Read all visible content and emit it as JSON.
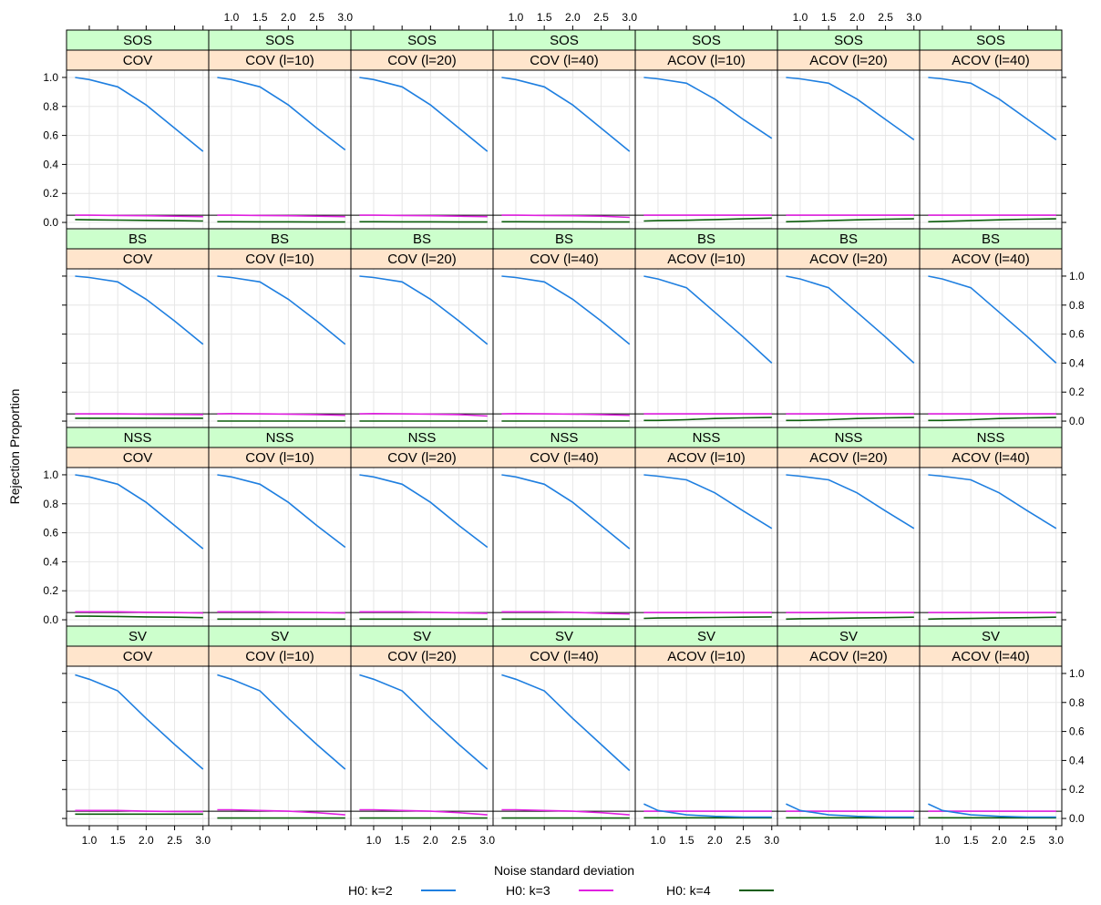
{
  "chart_data": {
    "type": "line",
    "xlabel": "Noise standard deviation",
    "ylabel": "Rejection Proportion",
    "xlim": [
      0.6,
      3.1
    ],
    "ylim": [
      -0.05,
      1.05
    ],
    "x": [
      0.75,
      1.0,
      1.5,
      2.0,
      2.5,
      3.0
    ],
    "x_ticks": [
      "1.0",
      "1.5",
      "2.0",
      "2.5",
      "3.0"
    ],
    "x_tick_values": [
      1.0,
      1.5,
      2.0,
      2.5,
      3.0
    ],
    "y_ticks": [
      "0.0",
      "0.2",
      "0.4",
      "0.6",
      "0.8",
      "1.0"
    ],
    "y_tick_values": [
      0.0,
      0.2,
      0.4,
      0.6,
      0.8,
      1.0
    ],
    "reference_line": 0.05,
    "grid": true,
    "legend": {
      "placement": "bottom",
      "entries": [
        {
          "label": "H0: k=2",
          "color": "#1f7fe0"
        },
        {
          "label": "H0: k=3",
          "color": "#e020e0"
        },
        {
          "label": "H0: k=4",
          "color": "#0b5d0b"
        }
      ]
    },
    "strip_colors": {
      "top": "#ccffcc",
      "bottom": "#ffe5cc"
    },
    "columns": [
      "COV",
      "COV (l=10)",
      "COV (l=20)",
      "COV (l=40)",
      "ACOV (l=10)",
      "ACOV (l=20)",
      "ACOV (l=40)"
    ],
    "rows": [
      {
        "name": "SOS",
        "series": [
          {
            "k2": [
              1.0,
              0.985,
              0.935,
              0.81,
              0.65,
              0.49
            ],
            "k3": [
              0.05,
              0.05,
              0.048,
              0.046,
              0.043,
              0.04
            ],
            "k4": [
              0.02,
              0.018,
              0.016,
              0.014,
              0.012,
              0.01
            ]
          },
          {
            "k2": [
              1.0,
              0.985,
              0.935,
              0.81,
              0.65,
              0.5
            ],
            "k3": [
              0.05,
              0.05,
              0.048,
              0.046,
              0.043,
              0.04
            ],
            "k4": [
              0.005,
              0.005,
              0.004,
              0.004,
              0.003,
              0.003
            ]
          },
          {
            "k2": [
              1.0,
              0.985,
              0.935,
              0.81,
              0.65,
              0.49
            ],
            "k3": [
              0.05,
              0.05,
              0.048,
              0.046,
              0.043,
              0.04
            ],
            "k4": [
              0.005,
              0.005,
              0.004,
              0.004,
              0.003,
              0.003
            ]
          },
          {
            "k2": [
              1.0,
              0.985,
              0.935,
              0.81,
              0.65,
              0.49
            ],
            "k3": [
              0.05,
              0.05,
              0.048,
              0.046,
              0.043,
              0.035
            ],
            "k4": [
              0.005,
              0.005,
              0.004,
              0.004,
              0.003,
              0.003
            ]
          },
          {
            "k2": [
              1.0,
              0.99,
              0.96,
              0.85,
              0.71,
              0.58
            ],
            "k3": [
              0.05,
              0.05,
              0.05,
              0.05,
              0.05,
              0.05
            ],
            "k4": [
              0.01,
              0.012,
              0.015,
              0.02,
              0.025,
              0.03
            ]
          },
          {
            "k2": [
              1.0,
              0.99,
              0.96,
              0.85,
              0.71,
              0.57
            ],
            "k3": [
              0.05,
              0.05,
              0.05,
              0.05,
              0.05,
              0.05
            ],
            "k4": [
              0.005,
              0.007,
              0.012,
              0.018,
              0.022,
              0.025
            ]
          },
          {
            "k2": [
              1.0,
              0.99,
              0.96,
              0.85,
              0.71,
              0.57
            ],
            "k3": [
              0.05,
              0.05,
              0.05,
              0.05,
              0.05,
              0.05
            ],
            "k4": [
              0.005,
              0.007,
              0.012,
              0.018,
              0.022,
              0.025
            ]
          }
        ]
      },
      {
        "name": "BS",
        "series": [
          {
            "k2": [
              1.0,
              0.99,
              0.96,
              0.84,
              0.69,
              0.53
            ],
            "k3": [
              0.05,
              0.05,
              0.05,
              0.048,
              0.046,
              0.045
            ],
            "k4": [
              0.02,
              0.02,
              0.02,
              0.02,
              0.02,
              0.02
            ]
          },
          {
            "k2": [
              1.0,
              0.99,
              0.96,
              0.84,
              0.69,
              0.53
            ],
            "k3": [
              0.05,
              0.052,
              0.05,
              0.048,
              0.045,
              0.04
            ],
            "k4": [
              0.0,
              0.0,
              0.0,
              0.0,
              0.0,
              0.0
            ]
          },
          {
            "k2": [
              1.0,
              0.99,
              0.96,
              0.84,
              0.69,
              0.53
            ],
            "k3": [
              0.05,
              0.052,
              0.05,
              0.048,
              0.045,
              0.035
            ],
            "k4": [
              0.0,
              0.0,
              0.0,
              0.0,
              0.0,
              0.0
            ]
          },
          {
            "k2": [
              1.0,
              0.99,
              0.96,
              0.84,
              0.69,
              0.53
            ],
            "k3": [
              0.05,
              0.052,
              0.05,
              0.048,
              0.045,
              0.04
            ],
            "k4": [
              0.0,
              0.0,
              0.0,
              0.0,
              0.0,
              0.0
            ]
          },
          {
            "k2": [
              1.0,
              0.98,
              0.92,
              0.75,
              0.58,
              0.4
            ],
            "k3": [
              0.05,
              0.05,
              0.05,
              0.05,
              0.05,
              0.05
            ],
            "k4": [
              0.005,
              0.005,
              0.01,
              0.018,
              0.022,
              0.025
            ]
          },
          {
            "k2": [
              1.0,
              0.98,
              0.92,
              0.75,
              0.58,
              0.4
            ],
            "k3": [
              0.05,
              0.05,
              0.05,
              0.05,
              0.05,
              0.05
            ],
            "k4": [
              0.005,
              0.005,
              0.01,
              0.018,
              0.022,
              0.025
            ]
          },
          {
            "k2": [
              1.0,
              0.98,
              0.92,
              0.75,
              0.58,
              0.4
            ],
            "k3": [
              0.05,
              0.05,
              0.05,
              0.05,
              0.05,
              0.05
            ],
            "k4": [
              0.005,
              0.005,
              0.01,
              0.018,
              0.022,
              0.025
            ]
          }
        ]
      },
      {
        "name": "NSS",
        "series": [
          {
            "k2": [
              1.0,
              0.985,
              0.935,
              0.81,
              0.65,
              0.49
            ],
            "k3": [
              0.055,
              0.055,
              0.055,
              0.052,
              0.05,
              0.047
            ],
            "k4": [
              0.025,
              0.025,
              0.023,
              0.02,
              0.018,
              0.015
            ]
          },
          {
            "k2": [
              1.0,
              0.985,
              0.935,
              0.81,
              0.65,
              0.5
            ],
            "k3": [
              0.055,
              0.055,
              0.055,
              0.052,
              0.05,
              0.047
            ],
            "k4": [
              0.005,
              0.005,
              0.005,
              0.005,
              0.005,
              0.005
            ]
          },
          {
            "k2": [
              1.0,
              0.985,
              0.935,
              0.81,
              0.65,
              0.5
            ],
            "k3": [
              0.055,
              0.055,
              0.055,
              0.052,
              0.048,
              0.045
            ],
            "k4": [
              0.005,
              0.005,
              0.005,
              0.005,
              0.005,
              0.005
            ]
          },
          {
            "k2": [
              1.0,
              0.985,
              0.935,
              0.81,
              0.65,
              0.49
            ],
            "k3": [
              0.055,
              0.055,
              0.055,
              0.052,
              0.045,
              0.04
            ],
            "k4": [
              0.005,
              0.005,
              0.005,
              0.005,
              0.005,
              0.005
            ]
          },
          {
            "k2": [
              1.0,
              0.99,
              0.965,
              0.875,
              0.75,
              0.63
            ],
            "k3": [
              0.05,
              0.05,
              0.05,
              0.05,
              0.05,
              0.05
            ],
            "k4": [
              0.01,
              0.012,
              0.014,
              0.016,
              0.018,
              0.02
            ]
          },
          {
            "k2": [
              1.0,
              0.99,
              0.965,
              0.875,
              0.75,
              0.63
            ],
            "k3": [
              0.05,
              0.05,
              0.05,
              0.05,
              0.05,
              0.05
            ],
            "k4": [
              0.005,
              0.007,
              0.009,
              0.012,
              0.015,
              0.018
            ]
          },
          {
            "k2": [
              1.0,
              0.99,
              0.965,
              0.875,
              0.75,
              0.63
            ],
            "k3": [
              0.05,
              0.05,
              0.05,
              0.05,
              0.05,
              0.05
            ],
            "k4": [
              0.005,
              0.007,
              0.009,
              0.012,
              0.015,
              0.018
            ]
          }
        ]
      },
      {
        "name": "SV",
        "series": [
          {
            "k2": [
              0.99,
              0.96,
              0.88,
              0.69,
              0.51,
              0.34
            ],
            "k3": [
              0.055,
              0.055,
              0.055,
              0.05,
              0.048,
              0.047
            ],
            "k4": [
              0.03,
              0.03,
              0.03,
              0.03,
              0.03,
              0.03
            ]
          },
          {
            "k2": [
              0.99,
              0.96,
              0.88,
              0.69,
              0.51,
              0.34
            ],
            "k3": [
              0.06,
              0.06,
              0.055,
              0.05,
              0.04,
              0.025
            ],
            "k4": [
              0.003,
              0.003,
              0.003,
              0.003,
              0.003,
              0.003
            ]
          },
          {
            "k2": [
              0.99,
              0.96,
              0.88,
              0.69,
              0.51,
              0.34
            ],
            "k3": [
              0.06,
              0.06,
              0.055,
              0.05,
              0.04,
              0.025
            ],
            "k4": [
              0.003,
              0.003,
              0.003,
              0.003,
              0.003,
              0.003
            ]
          },
          {
            "k2": [
              0.99,
              0.96,
              0.88,
              0.69,
              0.51,
              0.33
            ],
            "k3": [
              0.06,
              0.06,
              0.055,
              0.05,
              0.04,
              0.025
            ],
            "k4": [
              0.003,
              0.003,
              0.003,
              0.003,
              0.003,
              0.003
            ]
          },
          {
            "k2": [
              0.1,
              0.055,
              0.025,
              0.015,
              0.01,
              0.01
            ],
            "k3": [
              0.05,
              0.05,
              0.05,
              0.05,
              0.05,
              0.05
            ],
            "k4": [
              0.005,
              0.005,
              0.005,
              0.005,
              0.005,
              0.005
            ]
          },
          {
            "k2": [
              0.1,
              0.055,
              0.025,
              0.015,
              0.01,
              0.01
            ],
            "k3": [
              0.05,
              0.05,
              0.05,
              0.05,
              0.05,
              0.05
            ],
            "k4": [
              0.005,
              0.005,
              0.005,
              0.005,
              0.005,
              0.005
            ]
          },
          {
            "k2": [
              0.1,
              0.055,
              0.025,
              0.015,
              0.01,
              0.01
            ],
            "k3": [
              0.05,
              0.05,
              0.05,
              0.05,
              0.05,
              0.05
            ],
            "k4": [
              0.005,
              0.005,
              0.005,
              0.005,
              0.005,
              0.005
            ]
          }
        ]
      }
    ]
  }
}
